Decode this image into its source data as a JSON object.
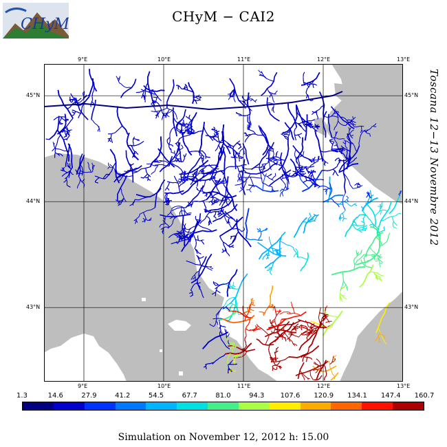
{
  "title": "CHyM  −  CAI2",
  "logo_text": "CHyM",
  "side_caption": "Toscana 12−13 Novembre 2012",
  "footer": "Simulation on November 12, 2012 h: 15.00",
  "map": {
    "lon_range": [
      8.5,
      13.0
    ],
    "lat_range": [
      42.3,
      45.3
    ],
    "lon_ticks": [
      "9°E",
      "10°E",
      "11°E",
      "12°E",
      "13°E"
    ],
    "lon_values": [
      9,
      10,
      11,
      12,
      13
    ],
    "lat_ticks": [
      "45°N",
      "44°N",
      "43°N"
    ],
    "lat_values": [
      45,
      44,
      43
    ],
    "sea_color": "#bebebe",
    "land_color": "#ffffff"
  },
  "colorbar": {
    "labels": [
      "1.3",
      "14.6",
      "27.9",
      "41.2",
      "54.5",
      "67.7",
      "81.0",
      "94.3",
      "107.6",
      "120.9",
      "134.1",
      "147.4",
      "160.7"
    ],
    "colors": [
      "#000080",
      "#0000cc",
      "#0033ff",
      "#0077ff",
      "#00b4ff",
      "#00e0e0",
      "#44ee88",
      "#aaff44",
      "#ffee00",
      "#ffaa00",
      "#ff6600",
      "#ff1100",
      "#aa0000"
    ]
  }
}
